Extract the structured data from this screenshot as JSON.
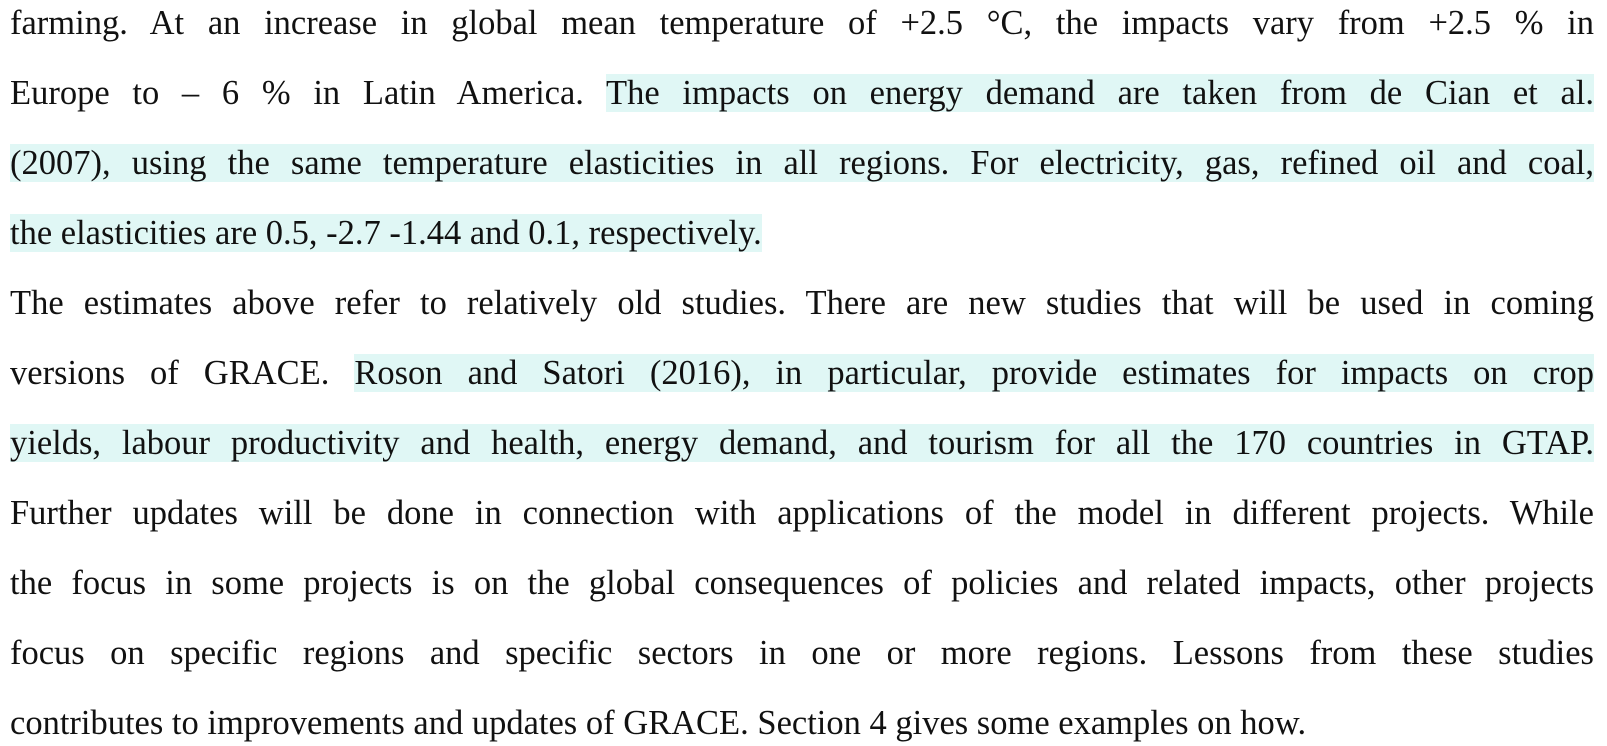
{
  "paragraphs": [
    {
      "lines": [
        {
          "segments": [
            {
              "text": "farming. At an increase in global mean temperature of +2.5 °C, the impacts vary from +2.5 % in",
              "highlight": false
            }
          ]
        },
        {
          "segments": [
            {
              "text": "Europe to – 6 % in Latin America. ",
              "highlight": false
            },
            {
              "text": "The impacts on energy demand are taken from de Cian et al.",
              "highlight": true
            }
          ]
        },
        {
          "segments": [
            {
              "text": "(2007), using the same temperature elasticities in all regions. For electricity, gas, refined oil and coal,",
              "highlight": true
            }
          ]
        },
        {
          "segments": [
            {
              "text": "the elasticities are 0.5, -2.7 -1.44 and 0.1, respectively.",
              "highlight": true
            }
          ]
        }
      ]
    },
    {
      "lines": [
        {
          "segments": [
            {
              "text": "The estimates above refer to relatively old studies. There are new studies that will be used in coming",
              "highlight": false
            }
          ]
        },
        {
          "segments": [
            {
              "text": "versions of GRACE. ",
              "highlight": false
            },
            {
              "text": "Roson and Satori (2016), in particular, provide estimates for impacts on crop",
              "highlight": true
            }
          ]
        },
        {
          "segments": [
            {
              "text": "yields, labour productivity and health, energy demand, and tourism for all the 170 countries in GTAP.",
              "highlight": true
            }
          ]
        },
        {
          "segments": [
            {
              "text": "Further updates will be done in connection with applications of the model in different projects. While",
              "highlight": false
            }
          ]
        },
        {
          "segments": [
            {
              "text": "the focus in some projects is on the global consequences of policies and related impacts, other projects",
              "highlight": false
            }
          ]
        },
        {
          "segments": [
            {
              "text": "focus on specific regions and specific sectors in one or more regions. Lessons from these studies",
              "highlight": false
            }
          ]
        },
        {
          "segments": [
            {
              "text": "contributes to improvements and updates of GRACE. Section 4 gives some examples on how.",
              "highlight": false
            }
          ]
        }
      ]
    }
  ],
  "colors": {
    "text": "#111111",
    "highlight": "#e0f7f5",
    "background": "#ffffff"
  }
}
